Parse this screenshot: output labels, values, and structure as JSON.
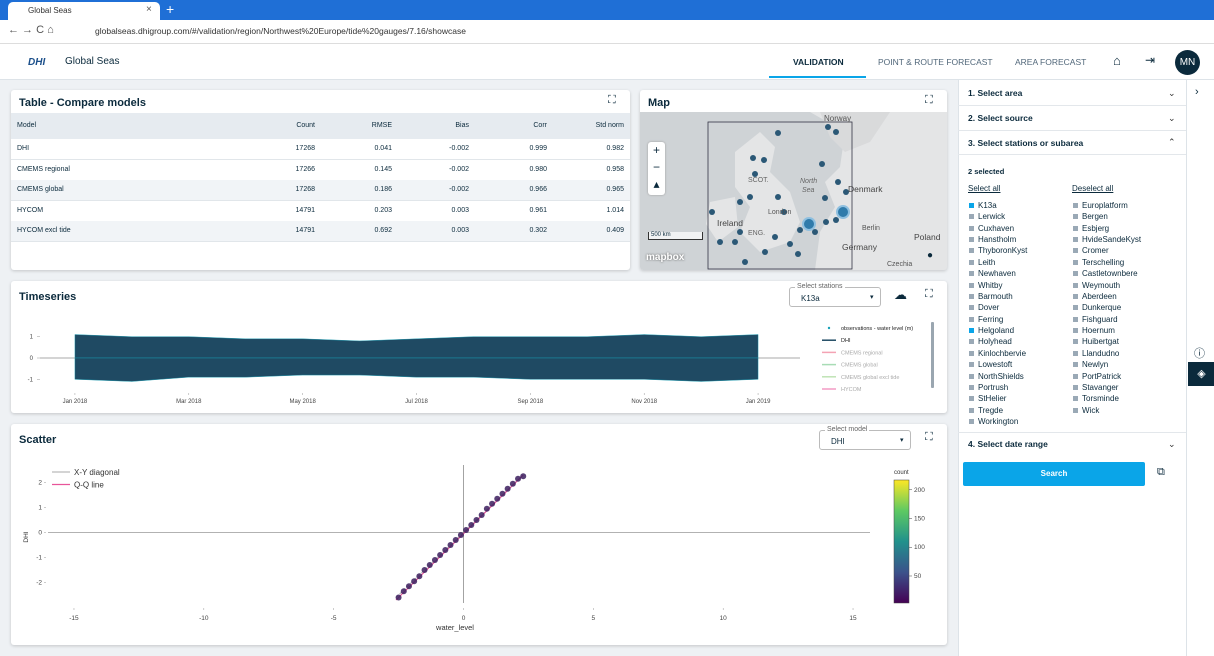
{
  "browser": {
    "tab_title": "Global Seas",
    "url": "globalseas.dhigroup.com/#/validation/region/Northwest%20Europe/tide%20gauges/7.16/showcase"
  },
  "header": {
    "logo": "DHI",
    "app_name": "Global Seas",
    "nav": [
      "VALIDATION",
      "POINT & ROUTE FORECAST",
      "AREA FORECAST"
    ],
    "avatar": "MN"
  },
  "table": {
    "title": "Table - Compare models",
    "columns": [
      "Model",
      "Count",
      "RMSE",
      "Bias",
      "Corr",
      "Std norm"
    ],
    "rows": [
      [
        "DHI",
        "17268",
        "0.041",
        "-0.002",
        "0.999",
        "0.982"
      ],
      [
        "CMEMS regional",
        "17266",
        "0.145",
        "-0.002",
        "0.980",
        "0.958"
      ],
      [
        "CMEMS global",
        "17268",
        "0.186",
        "-0.002",
        "0.966",
        "0.965"
      ],
      [
        "HYCOM",
        "14791",
        "0.203",
        "0.003",
        "0.961",
        "1.014"
      ],
      [
        "HYCOM excl tide",
        "14791",
        "0.692",
        "0.003",
        "0.302",
        "0.409"
      ]
    ]
  },
  "map": {
    "title": "Map",
    "labels": [
      "Norway",
      "North",
      "Sea",
      "Denmark",
      "Ireland",
      "Germany",
      "Berlin",
      "Poland",
      "Czechia",
      "SCOT.",
      "ENG.",
      "London"
    ],
    "scale": "500 km",
    "attribution": "mapbox"
  },
  "timeseries": {
    "title": "Timeseries",
    "select_label": "Select stations",
    "select_value": "K13a"
  },
  "scatter": {
    "title": "Scatter",
    "select_label": "Select model",
    "select_value": "DHI"
  },
  "chart_data": [
    {
      "type": "line",
      "x": [
        "2018-01",
        "2018-02",
        "2018-03",
        "2018-04",
        "2018-05",
        "2018-06",
        "2018-07",
        "2018-08",
        "2018-09",
        "2018-10",
        "2018-11",
        "2018-12",
        "2019-01"
      ],
      "series": [
        {
          "name": "DHI",
          "color": "#1f4a63",
          "upper": [
            1.1,
            1.0,
            1.0,
            0.9,
            0.9,
            0.8,
            0.9,
            1.0,
            1.0,
            1.0,
            1.1,
            1.0,
            1.1
          ],
          "lower": [
            -1.0,
            -1.1,
            -0.9,
            -0.9,
            -0.8,
            -0.8,
            -0.9,
            -0.9,
            -1.0,
            -1.0,
            -1.0,
            -1.1,
            -1.0
          ]
        }
      ],
      "legend": [
        {
          "name": "observations - water level (m)",
          "color": "#17a2b8"
        },
        {
          "name": "DHI",
          "color": "#1f4a63"
        },
        {
          "name": "CMEMS regional",
          "color": "#f4a3b4"
        },
        {
          "name": "CMEMS global",
          "color": "#a8dcb5"
        },
        {
          "name": "CMEMS global excl tide",
          "color": "#bfe3b4"
        },
        {
          "name": "HYCOM",
          "color": "#f29ac4"
        }
      ],
      "xlim": [
        "2017-12",
        "2019-02"
      ],
      "xticks": [
        {
          "value": "2018-01",
          "label": "Jan 2018"
        },
        {
          "value": "2018-03",
          "label": "Mar 2018"
        },
        {
          "value": "2018-05",
          "label": "May 2018"
        },
        {
          "value": "2018-07",
          "label": "Jul 2018"
        },
        {
          "value": "2018-09",
          "label": "Sep 2018"
        },
        {
          "value": "2018-11",
          "label": "Nov 2018"
        },
        {
          "value": "2019-01",
          "label": "Jan 2019"
        }
      ],
      "ylim": [
        -1.5,
        1.5
      ],
      "yticks": [
        -1,
        0,
        1
      ]
    },
    {
      "type": "scatter",
      "x": [
        -2.5,
        -2.3,
        -2.1,
        -1.9,
        -1.7,
        -1.5,
        -1.3,
        -1.1,
        -0.9,
        -0.7,
        -0.5,
        -0.3,
        -0.1,
        0.1,
        0.3,
        0.5,
        0.7,
        0.9,
        1.1,
        1.3,
        1.5,
        1.7,
        1.9,
        2.1,
        2.3
      ],
      "values": [
        -2.6,
        -2.35,
        -2.15,
        -1.95,
        -1.75,
        -1.5,
        -1.3,
        -1.1,
        -0.9,
        -0.7,
        -0.5,
        -0.3,
        -0.1,
        0.1,
        0.3,
        0.5,
        0.7,
        0.95,
        1.15,
        1.35,
        1.55,
        1.75,
        1.95,
        2.15,
        2.25
      ],
      "color": "#3b1f5e",
      "lines": [
        {
          "name": "X-Y diagonal",
          "color": "#bbbbbb",
          "x": [
            -2.6,
            2.3
          ],
          "values": [
            -2.6,
            2.3
          ]
        },
        {
          "name": "Q-Q line",
          "color": "#e8559a",
          "x": [
            -2.6,
            2.3
          ],
          "values": [
            -2.7,
            2.3
          ]
        }
      ],
      "xlabel": "water_level",
      "ylabel": "DHI",
      "xlim": [
        -16,
        16
      ],
      "xticks": [
        -15,
        -10,
        -5,
        0,
        5,
        10,
        15
      ],
      "ylim": [
        -2.7,
        2.7
      ],
      "yticks": [
        -2,
        -1,
        0,
        1,
        2
      ],
      "colorbar": {
        "title": "count",
        "lim": [
          3,
          217
        ],
        "ticks": [
          50,
          100,
          150,
          200
        ]
      }
    }
  ],
  "sidebar": {
    "sections": [
      "1. Select area",
      "2. Select source",
      "3. Select stations or subarea",
      "4. Select date range"
    ],
    "selected_count": "2 selected",
    "select_all": "Select all",
    "deselect_all": "Deselect all",
    "stations_left": [
      "K13a",
      "Lerwick",
      "Cuxhaven",
      "Hanstholm",
      "ThyboronKyst",
      "Leith",
      "Newhaven",
      "Whitby",
      "Barmouth",
      "Dover",
      "Ferring",
      "Helgoland",
      "Holyhead",
      "Kinlochbervie",
      "Lowestoft",
      "NorthShields",
      "Portrush",
      "StHelier",
      "Tregde",
      "Workington"
    ],
    "stations_right": [
      "Europlatform",
      "Bergen",
      "Esbjerg",
      "HvideSandeKyst",
      "Cromer",
      "Terschelling",
      "Castletownbere",
      "Weymouth",
      "Aberdeen",
      "Dunkerque",
      "Fishguard",
      "Hoernum",
      "Huibertgat",
      "Llandudno",
      "Newlyn",
      "PortPatrick",
      "Stavanger",
      "Torsminde",
      "Wick"
    ],
    "selected": [
      "K13a",
      "Helgoland"
    ],
    "search": "Search"
  }
}
